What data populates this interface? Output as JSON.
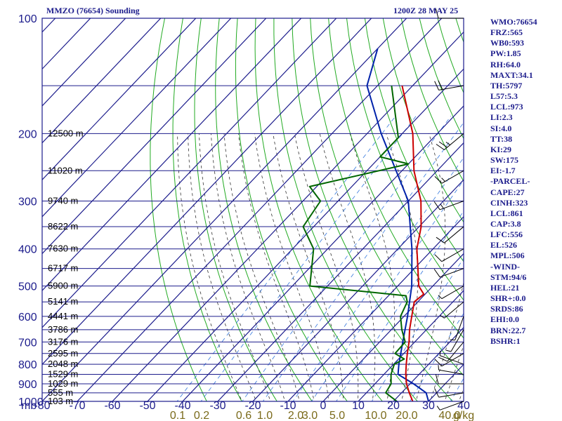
{
  "header": {
    "station": "MMZO (76654) Sounding",
    "time": "1200Z 28 MAY 25"
  },
  "indices": [
    "WMO:76654",
    "FRZ:565",
    "WB0:593",
    "PW:1.85",
    "RH:64.0",
    "MAXT:34.1",
    "TH:5797",
    "L57:5.3",
    "LCL:973",
    "LI:2.3",
    "SI:4.0",
    "TT:38",
    "KI:29",
    "SW:175",
    "EI:-1.7",
    "-PARCEL-",
    "CAPE:27",
    "CINH:323",
    "LCL:861",
    "CAP:3.8",
    "LFC:556",
    "EL:526",
    "MPL:506",
    "-WIND-",
    "STM:94/6",
    "HEL:21",
    "SHR+:0.0",
    "SRDS:86",
    "EHI:0.0",
    "BRN:22.7",
    "BSHR:1"
  ],
  "colors": {
    "frame": "#1c1c8c",
    "isobar": "#1c1c8c",
    "isotherm": "#1c1c8c",
    "dry_adiabat": "#22aa22",
    "moist_adiabat": "#333333",
    "mixing_ratio": "#3377dd",
    "temperature": "#cc0000",
    "dewpoint": "#006600",
    "parcel": "#0022aa",
    "mixing_label": "#7a6a1a",
    "barb": "#000000"
  },
  "chart_data": {
    "type": "skew-t log-p",
    "pressure_label": "mb",
    "pressure_ticks": [
      100,
      200,
      300,
      400,
      500,
      600,
      700,
      800,
      900,
      1000
    ],
    "temperature_ticks": [
      -80,
      -70,
      -60,
      -50,
      -40,
      -30,
      -20,
      -10,
      0,
      10,
      20,
      30,
      40
    ],
    "mixing_ratio_labels": [
      "0.1",
      "0.2",
      "0.6",
      "1.0",
      "2.0",
      "3.0",
      "5.0",
      "10.0",
      "20.0",
      "40.0"
    ],
    "mixing_ratio_unit": "g/kg",
    "height_labels": [
      {
        "p": 200,
        "label": "12500 m"
      },
      {
        "p": 250,
        "label": "11020 m"
      },
      {
        "p": 300,
        "label": "9740 m"
      },
      {
        "p": 350,
        "label": "8622 m"
      },
      {
        "p": 400,
        "label": "7630 m"
      },
      {
        "p": 450,
        "label": "6717 m"
      },
      {
        "p": 500,
        "label": "5900 m"
      },
      {
        "p": 550,
        "label": "5141 m"
      },
      {
        "p": 600,
        "label": "4441 m"
      },
      {
        "p": 650,
        "label": "3786 m"
      },
      {
        "p": 700,
        "label": "3176 m"
      },
      {
        "p": 750,
        "label": "2595 m"
      },
      {
        "p": 800,
        "label": "2048 m"
      },
      {
        "p": 850,
        "label": "1529 m"
      },
      {
        "p": 900,
        "label": "1029 m"
      },
      {
        "p": 950,
        "label": "555 m"
      },
      {
        "p": 1000,
        "label": "103 m"
      }
    ],
    "temperature_profile": [
      {
        "p": 1000,
        "t": 25.5
      },
      {
        "p": 950,
        "t": 22.2
      },
      {
        "p": 900,
        "t": 19.0
      },
      {
        "p": 850,
        "t": 16.2
      },
      {
        "p": 800,
        "t": 13.6
      },
      {
        "p": 750,
        "t": 11.0
      },
      {
        "p": 700,
        "t": 8.4
      },
      {
        "p": 650,
        "t": 5.2
      },
      {
        "p": 600,
        "t": 2.2
      },
      {
        "p": 550,
        "t": -1.0
      },
      {
        "p": 525,
        "t": -0.4
      },
      {
        "p": 500,
        "t": -4.0
      },
      {
        "p": 450,
        "t": -9.0
      },
      {
        "p": 400,
        "t": -14.6
      },
      {
        "p": 350,
        "t": -19.4
      },
      {
        "p": 300,
        "t": -26.4
      },
      {
        "p": 250,
        "t": -36.6
      },
      {
        "p": 200,
        "t": -47.0
      },
      {
        "p": 150,
        "t": -63.0
      }
    ],
    "dewpoint_profile": [
      {
        "p": 1000,
        "t": 21.0
      },
      {
        "p": 950,
        "t": 15.5
      },
      {
        "p": 900,
        "t": 14.6
      },
      {
        "p": 850,
        "t": 12.0
      },
      {
        "p": 800,
        "t": 10.2
      },
      {
        "p": 775,
        "t": 11.6
      },
      {
        "p": 750,
        "t": 7.5
      },
      {
        "p": 700,
        "t": 7.3
      },
      {
        "p": 650,
        "t": 3.0
      },
      {
        "p": 600,
        "t": -1.0
      },
      {
        "p": 550,
        "t": -3.0
      },
      {
        "p": 530,
        "t": -5.0
      },
      {
        "p": 500,
        "t": -35.0
      },
      {
        "p": 400,
        "t": -44.0
      },
      {
        "p": 350,
        "t": -53.0
      },
      {
        "p": 300,
        "t": -55.0
      },
      {
        "p": 275,
        "t": -62.0
      },
      {
        "p": 240,
        "t": -40.0
      },
      {
        "p": 230,
        "t": -50.0
      },
      {
        "p": 205,
        "t": -50.0
      },
      {
        "p": 150,
        "t": -66.0
      }
    ],
    "parcel_profile": [
      {
        "p": 1000,
        "t": 30.0
      },
      {
        "p": 950,
        "t": 27.0
      },
      {
        "p": 900,
        "t": 21.0
      },
      {
        "p": 850,
        "t": 14.0
      },
      {
        "p": 800,
        "t": 11.5
      },
      {
        "p": 700,
        "t": 6.6
      },
      {
        "p": 600,
        "t": 1.0
      },
      {
        "p": 500,
        "t": -6.0
      },
      {
        "p": 400,
        "t": -16.0
      },
      {
        "p": 300,
        "t": -30.0
      },
      {
        "p": 200,
        "t": -56.0
      },
      {
        "p": 150,
        "t": -73.0
      },
      {
        "p": 120,
        "t": -80.0
      }
    ],
    "wind_barbs": [
      {
        "p": 1000,
        "dir": 70,
        "spd": 5
      },
      {
        "p": 950,
        "dir": 80,
        "spd": 10
      },
      {
        "p": 900,
        "dir": 90,
        "spd": 10
      },
      {
        "p": 850,
        "dir": 100,
        "spd": 5
      },
      {
        "p": 800,
        "dir": 110,
        "spd": 5
      },
      {
        "p": 750,
        "dir": 60,
        "spd": 10
      },
      {
        "p": 700,
        "dir": 40,
        "spd": 10
      },
      {
        "p": 650,
        "dir": 30,
        "spd": 5
      },
      {
        "p": 600,
        "dir": 20,
        "spd": 5
      },
      {
        "p": 550,
        "dir": 50,
        "spd": 5
      },
      {
        "p": 500,
        "dir": 60,
        "spd": 5
      },
      {
        "p": 450,
        "dir": 70,
        "spd": 10
      },
      {
        "p": 400,
        "dir": 60,
        "spd": 10
      },
      {
        "p": 350,
        "dir": 50,
        "spd": 10
      },
      {
        "p": 300,
        "dir": 70,
        "spd": 15
      },
      {
        "p": 250,
        "dir": 60,
        "spd": 15
      },
      {
        "p": 200,
        "dir": 50,
        "spd": 25
      },
      {
        "p": 150,
        "dir": 80,
        "spd": 20
      },
      {
        "p": 100,
        "dir": 90,
        "spd": 10
      }
    ]
  }
}
